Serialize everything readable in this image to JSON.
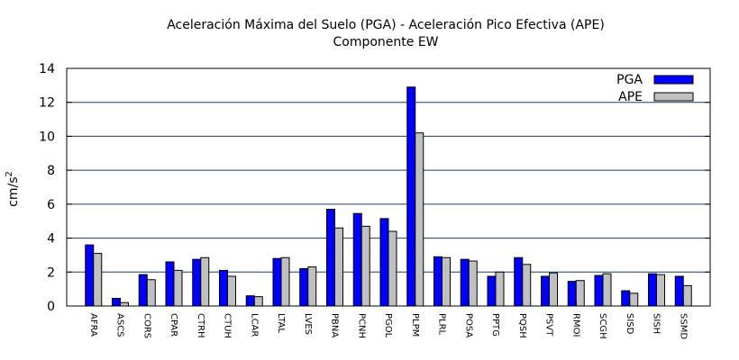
{
  "chart_data": {
    "type": "bar",
    "title": "Aceleración Máxima del Suelo (PGA) -  Aceleración Pico Efectiva (APE)",
    "subtitle": "Componente EW",
    "xlabel": "",
    "ylabel_base": "cm/s",
    "ylabel_sup": "2",
    "ylim": [
      0,
      14
    ],
    "yticks": [
      0,
      2,
      4,
      6,
      8,
      10,
      12,
      14
    ],
    "grid": true,
    "legend_position": "top-right",
    "categories": [
      "AFRA",
      "ASCS",
      "CORS",
      "CPAR",
      "CTRH",
      "CTUH",
      "LCAR",
      "LTAL",
      "LVES",
      "PBNA",
      "PCNH",
      "PGOL",
      "PLPM",
      "PLRL",
      "POSA",
      "PPTG",
      "PQSH",
      "PSVT",
      "RMOI",
      "SCGH",
      "SISD",
      "SISH",
      "SSMD"
    ],
    "series": [
      {
        "name": "PGA",
        "color": "#0000ff",
        "values": [
          3.6,
          0.45,
          1.85,
          2.6,
          2.75,
          2.1,
          0.6,
          2.8,
          2.2,
          5.7,
          5.45,
          5.15,
          12.9,
          2.9,
          2.75,
          1.75,
          2.85,
          1.75,
          1.45,
          1.8,
          0.9,
          1.9,
          1.75
        ]
      },
      {
        "name": "APE",
        "color": "#c0c0c0",
        "values": [
          3.1,
          0.2,
          1.55,
          2.1,
          2.85,
          1.75,
          0.55,
          2.85,
          2.3,
          4.6,
          4.7,
          4.4,
          10.2,
          2.85,
          2.65,
          2.0,
          2.45,
          1.95,
          1.5,
          1.9,
          0.75,
          1.85,
          1.2
        ]
      }
    ]
  }
}
